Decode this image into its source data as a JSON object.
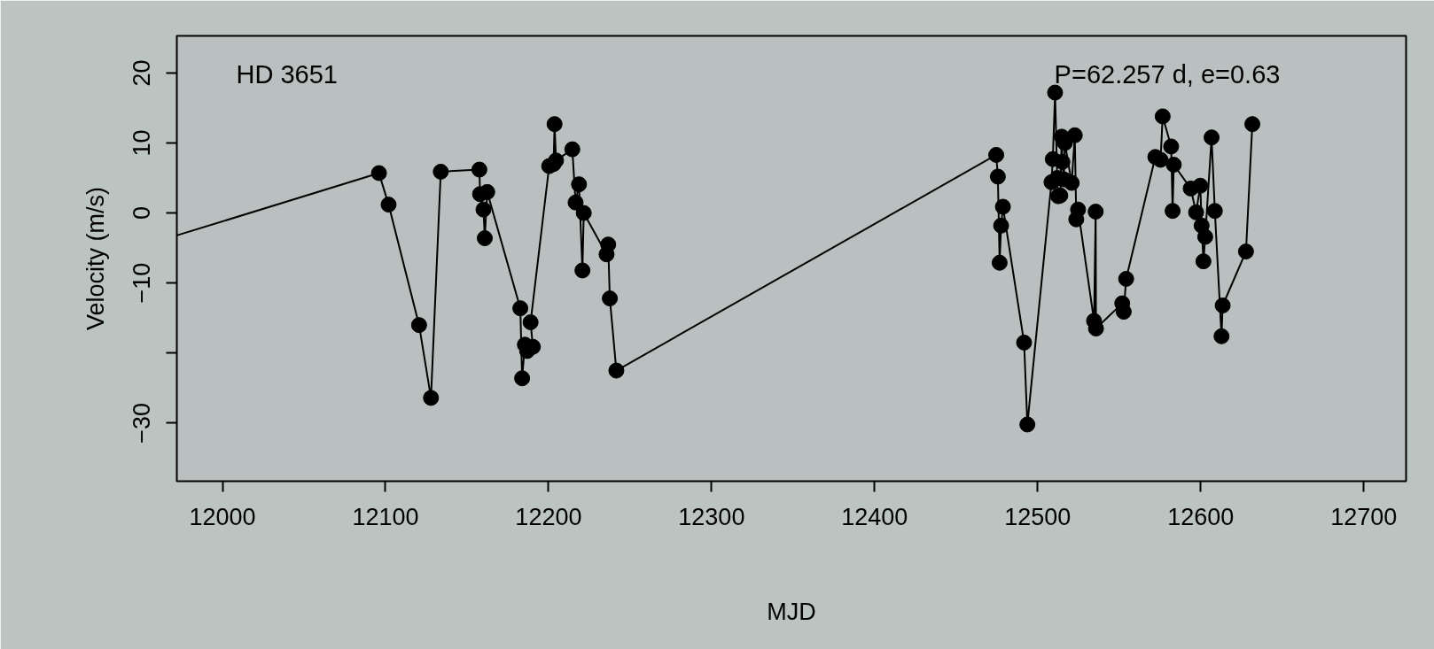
{
  "chart_data": {
    "type": "line",
    "xlabel": "MJD",
    "ylabel": "Velocity (m/s)",
    "annotations": [
      "HD 3651",
      "P=62.257 d,   e=0.63"
    ],
    "xlim": [
      11972,
      12726
    ],
    "ylim": [
      -38.3,
      25.3
    ],
    "xticks": [
      12000,
      12100,
      12200,
      12300,
      12400,
      12500,
      12600,
      12700
    ],
    "yticks": [
      {
        "value": -30,
        "label": "−30"
      },
      {
        "value": -20,
        "label": null
      },
      {
        "value": -10,
        "label": "−10"
      },
      0,
      10,
      20
    ],
    "grid": false,
    "line_style": "solid",
    "series": [
      {
        "color": "#000000",
        "type": "line",
        "x": [
          11972,
          12096.0
        ],
        "values": [
          -3.2,
          5.7
        ]
      },
      {
        "color": "#000000",
        "marker": "circle",
        "x": [
          12096.0,
          12101.9,
          12120.6,
          12127.9,
          12133.9,
          12157.6,
          12158.0,
          12160.1,
          12160.9,
          12162.4,
          12182.7,
          12183.8,
          12185.5,
          12186.9,
          12190.4,
          12189.0,
          12200.4,
          12203.1,
          12203.7,
          12204.6,
          12214.6,
          12216.6,
          12218.7,
          12220.8,
          12221.6,
          12235.6,
          12236.6,
          12237.6,
          12241.6,
          12474.6,
          12475.6,
          12476.7,
          12477.6,
          12478.7,
          12491.7,
          12493.7,
          12508.5,
          12509.3,
          12510.7,
          12512.0,
          12512.6,
          12513.9,
          12514.8,
          12515.2,
          12516.1,
          12516.7,
          12520.9,
          12522.8,
          12523.7,
          12524.8,
          12534.6,
          12535.6,
          12535.8,
          12551.9,
          12552.8,
          12554.3,
          12572.2,
          12575.4,
          12576.7,
          12581.9,
          12582.8,
          12583.5,
          12593.9,
          12597.2,
          12599.8,
          12600.6,
          12601.7,
          12602.8,
          12606.7,
          12608.7,
          12612.8,
          12613.5,
          12627.8,
          12631.7
        ],
        "values": [
          5.7,
          1.2,
          -16.0,
          -26.4,
          5.9,
          6.2,
          2.7,
          0.5,
          -3.6,
          3.0,
          -13.6,
          -23.6,
          -18.8,
          -19.7,
          -19.1,
          -15.6,
          6.7,
          7.0,
          12.7,
          7.5,
          9.1,
          1.5,
          4.1,
          -8.2,
          0.0,
          -5.9,
          -4.5,
          -12.2,
          -22.5,
          8.3,
          5.2,
          -7.1,
          -1.8,
          0.9,
          -18.5,
          -30.2,
          4.4,
          7.7,
          17.2,
          5.0,
          2.4,
          2.5,
          10.9,
          7.3,
          4.8,
          10.0,
          4.3,
          11.1,
          -0.9,
          0.5,
          -15.4,
          0.2,
          -16.5,
          -12.9,
          -14.1,
          -9.4,
          8.0,
          7.6,
          13.8,
          9.5,
          0.3,
          6.9,
          3.5,
          0.1,
          3.9,
          -1.8,
          -6.9,
          -3.4,
          10.8,
          0.3,
          -17.6,
          -13.2,
          -5.5,
          12.7
        ]
      }
    ]
  }
}
